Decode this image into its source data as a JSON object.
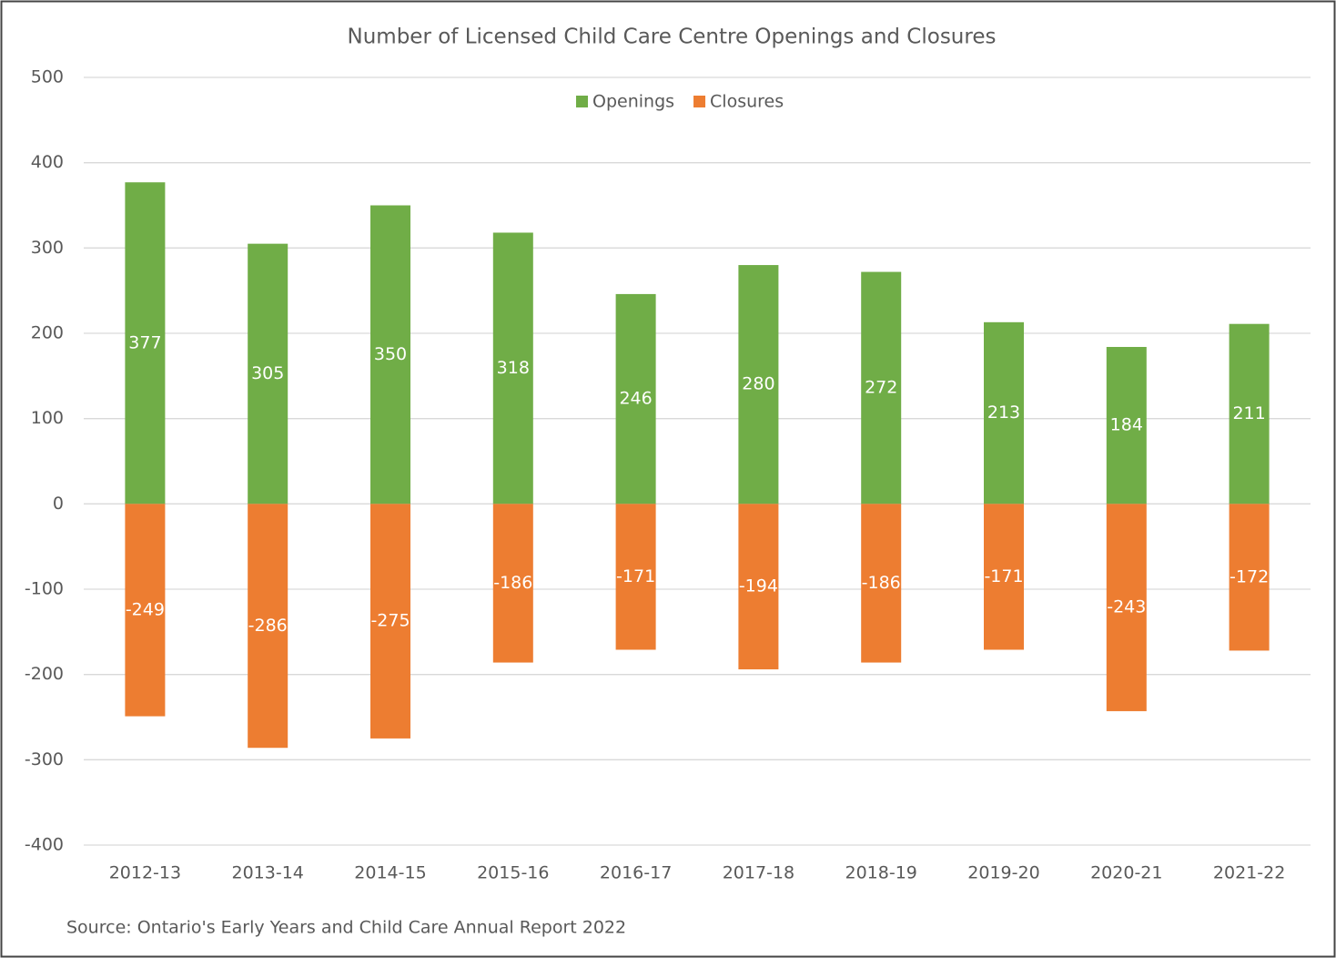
{
  "chart_data": {
    "type": "bar",
    "title": "Number of Licensed Child Care Centre Openings and Closures",
    "source": "Source: Ontario's Early Years and Child Care Annual Report 2022",
    "categories": [
      "2012-13",
      "2013-14",
      "2014-15",
      "2015-16",
      "2016-17",
      "2017-18",
      "2018-19",
      "2019-20",
      "2020-21",
      "2021-22"
    ],
    "series": [
      {
        "name": "Openings",
        "color": "#70ad47",
        "values": [
          377,
          305,
          350,
          318,
          246,
          280,
          272,
          213,
          184,
          211
        ]
      },
      {
        "name": "Closures",
        "color": "#ed7d31",
        "values": [
          -249,
          -286,
          -275,
          -186,
          -171,
          -194,
          -186,
          -171,
          -243,
          -172
        ]
      }
    ],
    "ylim": [
      -400,
      500
    ],
    "yticks": [
      -400,
      -300,
      -200,
      -100,
      0,
      100,
      200,
      300,
      400,
      500
    ],
    "grid": true,
    "legend": "top"
  }
}
